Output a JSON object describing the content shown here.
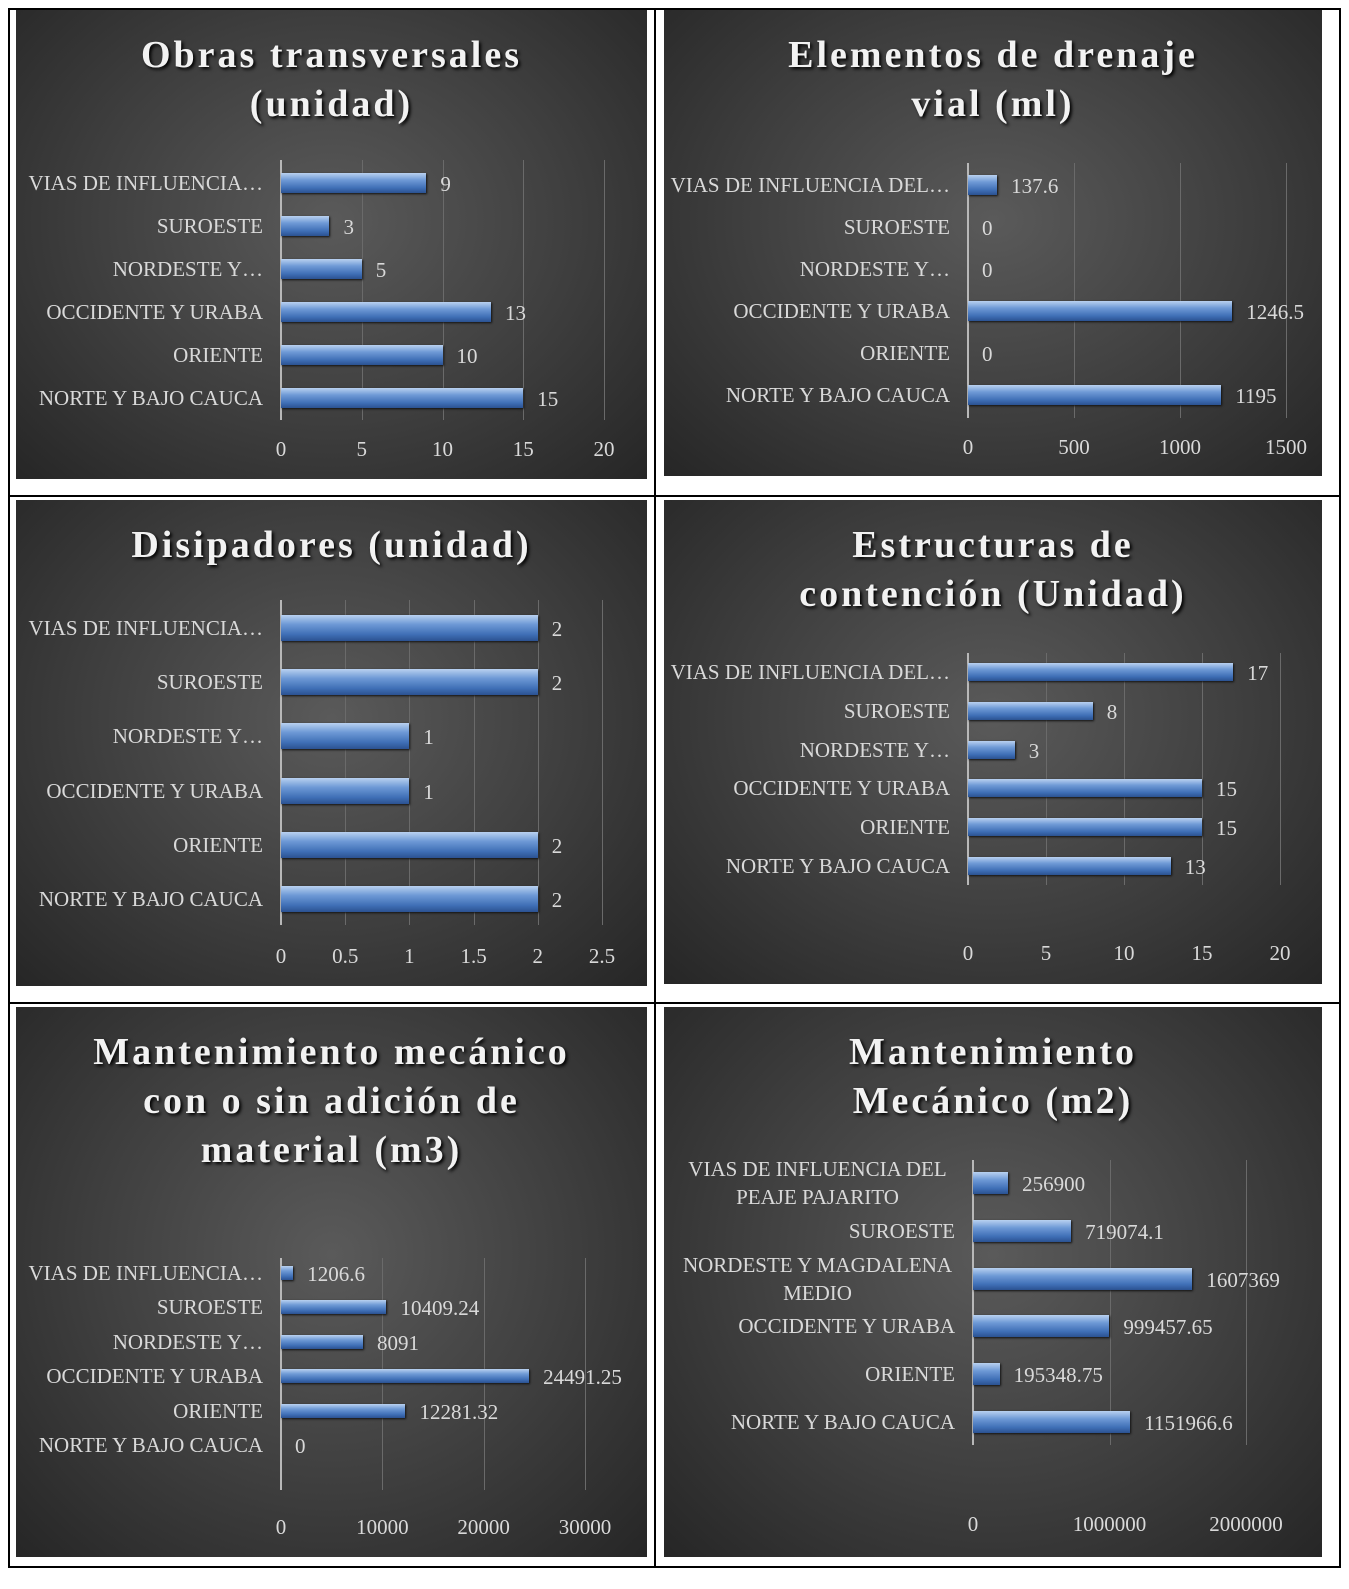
{
  "chart_data": [
    {
      "type": "bar",
      "title": "Obras transversales (unidad)",
      "categories": [
        "VIAS DE INFLUENCIA…",
        "SUROESTE",
        "NORDESTE Y…",
        "OCCIDENTE Y URABA",
        "ORIENTE",
        "NORTE Y BAJO CAUCA"
      ],
      "values": [
        9,
        3,
        5,
        13,
        10,
        15
      ],
      "color": "#4f81bd",
      "xlim": [
        0,
        20
      ],
      "xticks": [
        0,
        5,
        10,
        15,
        20
      ],
      "grid": true
    },
    {
      "type": "bar",
      "title": "Elementos de drenaje vial (ml)",
      "categories": [
        "VIAS DE INFLUENCIA DEL…",
        "SUROESTE",
        "NORDESTE Y…",
        "OCCIDENTE Y URABA",
        "ORIENTE",
        "NORTE Y BAJO CAUCA"
      ],
      "values": [
        137.6,
        0,
        0,
        1246.5,
        0,
        1195
      ],
      "color": "#4f81bd",
      "xlim": [
        0,
        1500
      ],
      "xticks": [
        0,
        500,
        1000,
        1500
      ],
      "grid": true
    },
    {
      "type": "bar",
      "title": "Disipadores (unidad)",
      "categories": [
        "VIAS DE INFLUENCIA…",
        "SUROESTE",
        "NORDESTE Y…",
        "OCCIDENTE Y URABA",
        "ORIENTE",
        "NORTE Y BAJO CAUCA"
      ],
      "values": [
        2,
        2,
        1,
        1,
        2,
        2
      ],
      "color": "#4f81bd",
      "xlim": [
        0,
        2.5
      ],
      "xticks": [
        0,
        0.5,
        1,
        1.5,
        2,
        2.5
      ],
      "grid": true
    },
    {
      "type": "bar",
      "title": "Estructuras de contención (Unidad)",
      "categories": [
        "VIAS DE INFLUENCIA DEL…",
        "SUROESTE",
        "NORDESTE Y…",
        "OCCIDENTE Y URABA",
        "ORIENTE",
        "NORTE Y BAJO CAUCA"
      ],
      "values": [
        17,
        8,
        3,
        15,
        15,
        13
      ],
      "color": "#4f81bd",
      "xlim": [
        0,
        20
      ],
      "xticks": [
        0,
        5,
        10,
        15,
        20
      ],
      "grid": true
    },
    {
      "type": "bar",
      "title": "Mantenimiento mecánico con o sin adición de material (m3)",
      "categories": [
        "VIAS DE INFLUENCIA…",
        "SUROESTE",
        "NORDESTE Y…",
        "OCCIDENTE Y URABA",
        "ORIENTE",
        "NORTE Y BAJO CAUCA"
      ],
      "values": [
        1206.6,
        10409.24,
        8091,
        24491.25,
        12281.32,
        0
      ],
      "color": "#4f81bd",
      "xlim": [
        0,
        30000
      ],
      "xticks": [
        0,
        10000,
        20000,
        30000
      ],
      "grid": true
    },
    {
      "type": "bar",
      "title": "Mantenimiento Mecánico (m2)",
      "categories": [
        "VIAS DE INFLUENCIA DEL PEAJE PAJARITO",
        "SUROESTE",
        "NORDESTE Y MAGDALENA MEDIO",
        "OCCIDENTE Y URABA",
        "ORIENTE",
        "NORTE Y BAJO CAUCA"
      ],
      "values": [
        256900,
        719074.1,
        1607369,
        999457.65,
        195348.75,
        1151966.6
      ],
      "color": "#4f81bd",
      "xlim": [
        0,
        2000000
      ],
      "xticks": [
        0,
        1000000,
        2000000
      ],
      "grid": true
    }
  ]
}
